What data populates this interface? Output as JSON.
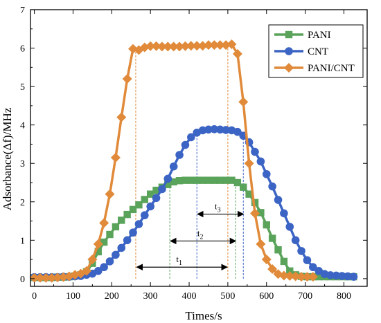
{
  "chart_data": {
    "type": "line",
    "xlabel": "Times/s",
    "ylabel": "Adsorbance(Δf)/MHz",
    "xlim": [
      -10,
      860
    ],
    "ylim": [
      -0.2,
      7
    ],
    "xticks": [
      0,
      100,
      200,
      300,
      400,
      500,
      600,
      700,
      800
    ],
    "yticks": [
      0,
      1,
      2,
      3,
      4,
      5,
      6,
      7
    ],
    "grid": false,
    "legend_position": "top-right",
    "series": [
      {
        "name": "PANI",
        "color": "#5aa35a",
        "marker": "square",
        "x": [
          0,
          15,
          30,
          45,
          60,
          75,
          90,
          105,
          120,
          135,
          150,
          165,
          180,
          195,
          210,
          225,
          240,
          255,
          270,
          285,
          300,
          315,
          330,
          345,
          360,
          375,
          390,
          405,
          420,
          435,
          450,
          465,
          480,
          495,
          510,
          525,
          540,
          555,
          570,
          585,
          600,
          615,
          630,
          645,
          660,
          675,
          690,
          705,
          720,
          735,
          750,
          765,
          780,
          795,
          810,
          825
        ],
        "y": [
          0.03,
          0.03,
          0.03,
          0.03,
          0.04,
          0.04,
          0.05,
          0.07,
          0.1,
          0.18,
          0.4,
          0.7,
          0.95,
          1.15,
          1.35,
          1.52,
          1.67,
          1.8,
          1.92,
          2.06,
          2.2,
          2.3,
          2.38,
          2.45,
          2.52,
          2.55,
          2.56,
          2.56,
          2.56,
          2.56,
          2.56,
          2.56,
          2.56,
          2.56,
          2.56,
          2.5,
          2.38,
          2.2,
          1.98,
          1.72,
          1.4,
          1.05,
          0.75,
          0.45,
          0.2,
          0.1,
          0.06,
          0.05,
          0.05,
          0.05,
          0.05,
          0.05,
          0.05,
          0.05,
          0.05,
          0.05
        ]
      },
      {
        "name": "CNT",
        "color": "#3b64c4",
        "marker": "circle",
        "x": [
          0,
          15,
          30,
          45,
          60,
          75,
          90,
          105,
          120,
          135,
          150,
          165,
          180,
          195,
          210,
          225,
          240,
          255,
          270,
          285,
          300,
          315,
          330,
          345,
          360,
          375,
          390,
          405,
          420,
          435,
          450,
          465,
          480,
          495,
          510,
          525,
          540,
          555,
          570,
          585,
          600,
          615,
          630,
          645,
          660,
          675,
          690,
          705,
          720,
          735,
          750,
          765,
          780,
          795,
          810,
          825
        ],
        "y": [
          0.04,
          0.04,
          0.04,
          0.04,
          0.04,
          0.05,
          0.05,
          0.06,
          0.07,
          0.1,
          0.13,
          0.2,
          0.3,
          0.45,
          0.62,
          0.8,
          1.0,
          1.2,
          1.42,
          1.65,
          1.88,
          2.1,
          2.33,
          2.6,
          2.92,
          3.22,
          3.48,
          3.68,
          3.8,
          3.86,
          3.88,
          3.89,
          3.88,
          3.87,
          3.86,
          3.82,
          3.72,
          3.55,
          3.3,
          3.05,
          2.72,
          2.4,
          2.05,
          1.7,
          1.35,
          1.0,
          0.72,
          0.48,
          0.3,
          0.2,
          0.12,
          0.09,
          0.08,
          0.07,
          0.06,
          0.05
        ]
      },
      {
        "name": "PANI/CNT",
        "color": "#e08a3a",
        "marker": "diamond",
        "x": [
          0,
          15,
          30,
          45,
          60,
          75,
          90,
          105,
          120,
          135,
          150,
          165,
          180,
          195,
          210,
          225,
          240,
          255,
          270,
          285,
          300,
          315,
          330,
          345,
          360,
          375,
          390,
          405,
          420,
          435,
          450,
          465,
          480,
          495,
          510,
          525,
          540,
          555,
          570,
          585,
          600,
          615,
          630,
          645,
          660,
          675,
          690,
          705,
          720
        ],
        "y": [
          0.02,
          0.02,
          0.02,
          0.02,
          0.03,
          0.04,
          0.06,
          0.1,
          0.13,
          0.2,
          0.5,
          0.9,
          1.45,
          2.2,
          3.15,
          4.2,
          5.2,
          5.98,
          5.95,
          6.02,
          6.05,
          6.05,
          6.04,
          6.04,
          6.04,
          6.04,
          6.05,
          6.06,
          6.06,
          6.06,
          6.08,
          6.08,
          6.08,
          6.08,
          6.1,
          5.85,
          4.6,
          3.0,
          1.7,
          0.9,
          0.5,
          0.25,
          0.12,
          0.08,
          0.07,
          0.06,
          0.05,
          0.05,
          0.05
        ]
      }
    ],
    "markers": {
      "vlines": [
        {
          "x": 262,
          "y": 5.98,
          "color": "#e08a3a"
        },
        {
          "x": 500,
          "y": 6.08,
          "color": "#e08a3a"
        },
        {
          "x": 350,
          "y": 2.5,
          "color": "#5aa35a"
        },
        {
          "x": 520,
          "y": 2.56,
          "color": "#5aa35a"
        },
        {
          "x": 420,
          "y": 3.8,
          "color": "#3b64c4"
        },
        {
          "x": 540,
          "y": 3.72,
          "color": "#3b64c4"
        }
      ],
      "intervals": [
        {
          "label": "t",
          "sub": "1",
          "x1": 265,
          "x2": 498,
          "y": 0.3
        },
        {
          "label": "t",
          "sub": "2",
          "x1": 352,
          "x2": 520,
          "y": 0.98
        },
        {
          "label": "t",
          "sub": "3",
          "x1": 422,
          "x2": 540,
          "y": 1.68
        }
      ]
    }
  }
}
